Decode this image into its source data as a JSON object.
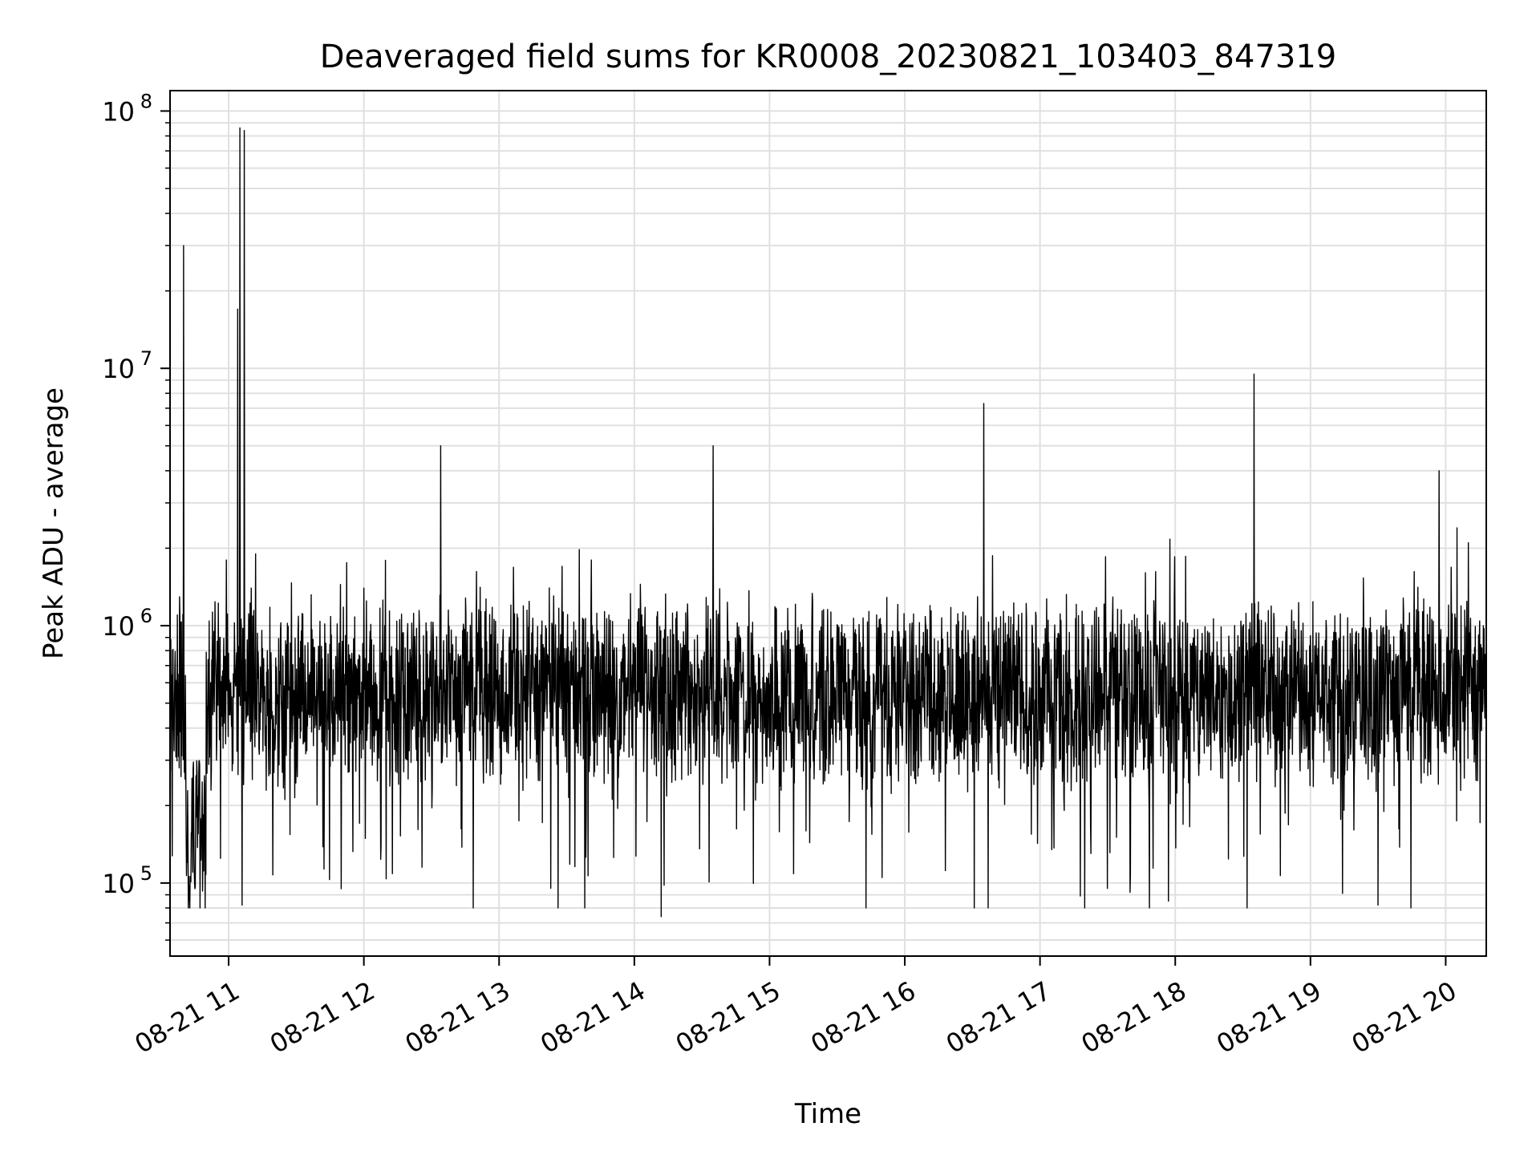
{
  "chart_data": {
    "type": "line",
    "title": "Deaveraged field sums for KR0008_20230821_103403_847319",
    "xlabel": "Time",
    "ylabel": "Peak ADU - average",
    "x_axis": {
      "kind": "datetime",
      "range": [
        "2023-08-21 10:34",
        "2023-08-21 20:18"
      ],
      "ticks": [
        {
          "value": "2023-08-21 11:00",
          "label": "08-21 11"
        },
        {
          "value": "2023-08-21 12:00",
          "label": "08-21 12"
        },
        {
          "value": "2023-08-21 13:00",
          "label": "08-21 13"
        },
        {
          "value": "2023-08-21 14:00",
          "label": "08-21 14"
        },
        {
          "value": "2023-08-21 15:00",
          "label": "08-21 15"
        },
        {
          "value": "2023-08-21 16:00",
          "label": "08-21 16"
        },
        {
          "value": "2023-08-21 17:00",
          "label": "08-21 17"
        },
        {
          "value": "2023-08-21 18:00",
          "label": "08-21 18"
        },
        {
          "value": "2023-08-21 19:00",
          "label": "08-21 19"
        },
        {
          "value": "2023-08-21 20:00",
          "label": "08-21 20"
        }
      ],
      "tick_label_rotation_deg": 30
    },
    "y_axis": {
      "scale": "log",
      "range": [
        52000,
        120000000
      ],
      "major_ticks": [
        {
          "value": 100000,
          "base": "10",
          "exp": "5"
        },
        {
          "value": 1000000,
          "base": "10",
          "exp": "6"
        },
        {
          "value": 10000000,
          "base": "10",
          "exp": "7"
        },
        {
          "value": 100000000,
          "base": "10",
          "exp": "8"
        }
      ]
    },
    "grid": true,
    "grid_minor_y": true,
    "line_color": "#000000",
    "grid_color": "#e0e0e0",
    "series": [
      {
        "color": "#000000",
        "baseline": {
          "typical": 550000,
          "low": 150000,
          "high": 950000
        },
        "points": [
          {
            "x": "2023-08-21 10:34",
            "y": 450000
          },
          {
            "x": "2023-08-21 10:38",
            "y": 280000
          },
          {
            "x": "2023-08-21 10:40",
            "y": 30000000
          },
          {
            "x": "2023-08-21 10:42",
            "y": 150000
          },
          {
            "x": "2023-08-21 10:45",
            "y": 95000
          },
          {
            "x": "2023-08-21 10:48",
            "y": 170000
          },
          {
            "x": "2023-08-21 10:52",
            "y": 600000
          },
          {
            "x": "2023-08-21 10:56",
            "y": 900000
          },
          {
            "x": "2023-08-21 10:59",
            "y": 1800000
          },
          {
            "x": "2023-08-21 11:01",
            "y": 600000
          },
          {
            "x": "2023-08-21 11:04",
            "y": 17000000
          },
          {
            "x": "2023-08-21 11:05",
            "y": 86000000
          },
          {
            "x": "2023-08-21 11:06",
            "y": 82000
          },
          {
            "x": "2023-08-21 11:07",
            "y": 84000000
          },
          {
            "x": "2023-08-21 11:10",
            "y": 1400000
          },
          {
            "x": "2023-08-21 11:12",
            "y": 1900000
          },
          {
            "x": "2023-08-21 11:50",
            "y": 95000
          },
          {
            "x": "2023-08-21 12:00",
            "y": 1400000
          },
          {
            "x": "2023-08-21 12:34",
            "y": 5000000
          },
          {
            "x": "2023-08-21 13:28",
            "y": 1700000
          },
          {
            "x": "2023-08-21 13:38",
            "y": 80000
          },
          {
            "x": "2023-08-21 13:41",
            "y": 1800000
          },
          {
            "x": "2023-08-21 14:12",
            "y": 74000
          },
          {
            "x": "2023-08-21 14:35",
            "y": 5000000
          },
          {
            "x": "2023-08-21 15:50",
            "y": 105000
          },
          {
            "x": "2023-08-21 16:35",
            "y": 7300000
          },
          {
            "x": "2023-08-21 16:37",
            "y": 80000
          },
          {
            "x": "2023-08-21 17:40",
            "y": 92000
          },
          {
            "x": "2023-08-21 17:57",
            "y": 85000
          },
          {
            "x": "2023-08-21 18:35",
            "y": 9500000
          },
          {
            "x": "2023-08-21 19:30",
            "y": 82000
          },
          {
            "x": "2023-08-21 19:57",
            "y": 4000000
          },
          {
            "x": "2023-08-21 20:05",
            "y": 2400000
          },
          {
            "x": "2023-08-21 20:10",
            "y": 2100000
          },
          {
            "x": "2023-08-21 20:18",
            "y": 600000
          }
        ]
      }
    ]
  }
}
